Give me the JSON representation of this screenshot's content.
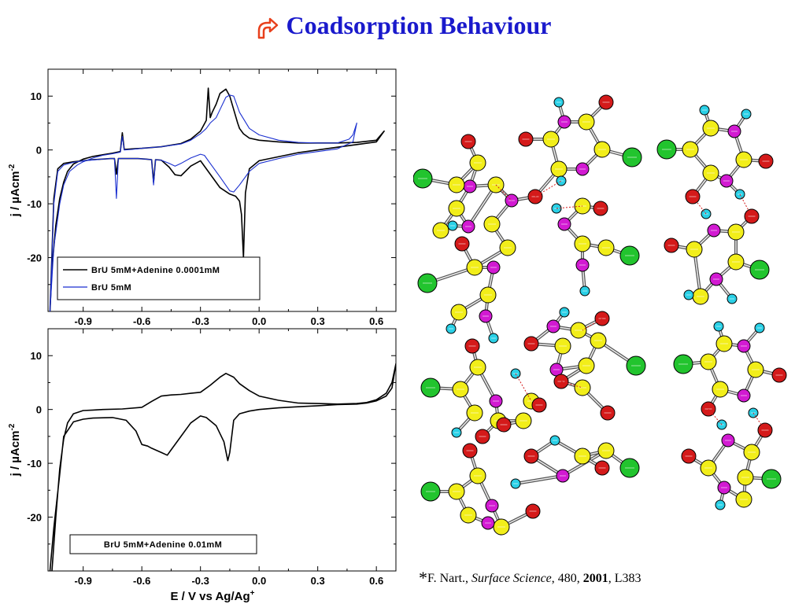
{
  "slide": {
    "title": "Coadsorption Behaviour",
    "title_color": "#1a1acc",
    "icon": "curved-arrow-icon",
    "icon_color": "#e8401c"
  },
  "citation": {
    "star": "*",
    "author": "F. Nart., ",
    "journal": "Surface Science",
    "volume": ", 480, ",
    "year": "2001",
    "pages": ", L383"
  },
  "chart_data": [
    {
      "type": "line",
      "xlim": [
        -1.08,
        0.7
      ],
      "ylim": [
        -30,
        15
      ],
      "xticks": [
        "-0.9",
        "-0.6",
        "-0.3",
        "0.0",
        "0.3",
        "0.6"
      ],
      "yticks": [
        "10",
        "0",
        "-10",
        "-20"
      ],
      "ylabel": "j / µAcm",
      "ylabel_sup": "-2",
      "legend_position": "bottom-left",
      "series": [
        {
          "name": "BrU 5mM+Adenine 0.0001mM",
          "color": "#000000",
          "x": [
            -1.07,
            -1.06,
            -1.04,
            -1.02,
            -1.0,
            -0.98,
            -0.95,
            -0.9,
            -0.85,
            -0.8,
            -0.75,
            -0.71,
            -0.7,
            -0.69,
            -0.65,
            -0.6,
            -0.5,
            -0.4,
            -0.35,
            -0.3,
            -0.27,
            -0.26,
            -0.25,
            -0.24,
            -0.22,
            -0.2,
            -0.17,
            -0.15,
            -0.13,
            -0.11,
            -0.1,
            -0.08,
            -0.05,
            0.0,
            0.1,
            0.2,
            0.3,
            0.4,
            0.5,
            0.6,
            0.64,
            0.6,
            0.4,
            0.2,
            0.0,
            -0.05,
            -0.07,
            -0.08,
            -0.09,
            -0.1,
            -0.12,
            -0.15,
            -0.2,
            -0.25,
            -0.3,
            -0.35,
            -0.4,
            -0.43,
            -0.46,
            -0.5,
            -0.53,
            -0.54,
            -0.55,
            -0.58,
            -0.62,
            -0.68,
            -0.72,
            -0.73,
            -0.74,
            -0.76,
            -0.8,
            -0.85,
            -0.9,
            -0.95,
            -1.0,
            -1.03,
            -1.05,
            -1.07
          ],
          "y": [
            -30,
            -22,
            -14,
            -9,
            -6,
            -4,
            -2.6,
            -1.7,
            -1.2,
            -0.9,
            -0.6,
            -0.3,
            3.2,
            0.1,
            0.2,
            0.3,
            0.6,
            1.2,
            2.0,
            3.5,
            5.5,
            11.5,
            6.0,
            7.0,
            8.5,
            10.5,
            11.3,
            10.0,
            7.5,
            5.0,
            4.0,
            3.0,
            2.2,
            1.8,
            1.5,
            1.3,
            1.3,
            1.3,
            1.4,
            1.8,
            3.5,
            1.5,
            0.5,
            -0.5,
            -2.0,
            -3.5,
            -8.0,
            -20.0,
            -12.0,
            -9.5,
            -8.6,
            -8.2,
            -7.0,
            -4.5,
            -2.0,
            -3.0,
            -4.8,
            -4.6,
            -3.2,
            -1.9,
            -1.8,
            -6.0,
            -1.8,
            -1.7,
            -1.6,
            -1.6,
            -1.6,
            -4.5,
            -1.6,
            -1.6,
            -1.7,
            -1.8,
            -2.0,
            -2.2,
            -2.5,
            -3.5,
            -9.0,
            -30
          ]
        },
        {
          "name": "BrU 5mM",
          "color": "#1a2fd0",
          "x": [
            -1.07,
            -1.05,
            -1.02,
            -1.0,
            -0.97,
            -0.93,
            -0.9,
            -0.85,
            -0.8,
            -0.75,
            -0.71,
            -0.7,
            -0.69,
            -0.65,
            -0.6,
            -0.5,
            -0.4,
            -0.35,
            -0.3,
            -0.27,
            -0.25,
            -0.22,
            -0.2,
            -0.17,
            -0.15,
            -0.13,
            -0.1,
            -0.05,
            0.0,
            0.1,
            0.2,
            0.3,
            0.4,
            0.46,
            0.48,
            0.5,
            0.48,
            0.4,
            0.3,
            0.2,
            0.1,
            0.0,
            -0.05,
            -0.1,
            -0.13,
            -0.15,
            -0.2,
            -0.25,
            -0.28,
            -0.3,
            -0.35,
            -0.4,
            -0.43,
            -0.46,
            -0.5,
            -0.53,
            -0.54,
            -0.55,
            -0.58,
            -0.62,
            -0.68,
            -0.72,
            -0.73,
            -0.74,
            -0.76,
            -0.8,
            -0.9,
            -0.95,
            -1.0,
            -1.03,
            -1.05,
            -1.07
          ],
          "y": [
            -30,
            -18,
            -10,
            -6.5,
            -4,
            -2.8,
            -2.2,
            -1.5,
            -1.0,
            -0.7,
            -0.4,
            2.5,
            0.0,
            0.1,
            0.3,
            0.6,
            1.1,
            1.8,
            3.0,
            4.0,
            5.0,
            6.0,
            7.5,
            9.8,
            10.2,
            10.0,
            7.0,
            4.0,
            2.8,
            1.8,
            1.4,
            1.3,
            1.3,
            2.0,
            2.8,
            5.0,
            1.5,
            0.2,
            -0.3,
            -0.8,
            -1.6,
            -2.5,
            -4.0,
            -6.5,
            -7.8,
            -7.6,
            -5.0,
            -2.5,
            -1.0,
            -0.8,
            -1.5,
            -2.5,
            -3.0,
            -2.5,
            -1.9,
            -1.8,
            -6.5,
            -1.8,
            -1.7,
            -1.6,
            -1.6,
            -1.6,
            -9.0,
            -1.6,
            -1.6,
            -1.7,
            -2.0,
            -2.3,
            -2.8,
            -4.0,
            -10.0,
            -30
          ]
        }
      ]
    },
    {
      "type": "line",
      "xlim": [
        -1.08,
        0.7
      ],
      "ylim": [
        -30,
        15
      ],
      "xticks": [
        "-0.9",
        "-0.6",
        "-0.3",
        "0.0",
        "0.3",
        "0.6"
      ],
      "yticks": [
        "10",
        "0",
        "-10",
        "-20"
      ],
      "xlabel": "E / V  vs Ag/Ag",
      "xlabel_sup": "+",
      "ylabel": "j / µAcm",
      "ylabel_sup": "-2",
      "legend_position": "bottom-center",
      "legend_only_label": true,
      "series": [
        {
          "name": "BrU 5mM+Adenine 0.01mM",
          "color": "#000000",
          "x": [
            -1.06,
            -1.04,
            -1.02,
            -1.0,
            -0.98,
            -0.95,
            -0.9,
            -0.85,
            -0.8,
            -0.7,
            -0.6,
            -0.55,
            -0.5,
            -0.45,
            -0.4,
            -0.35,
            -0.3,
            -0.25,
            -0.2,
            -0.17,
            -0.13,
            -0.1,
            -0.05,
            0.0,
            0.1,
            0.2,
            0.3,
            0.4,
            0.5,
            0.55,
            0.6,
            0.65,
            0.68,
            0.7,
            0.68,
            0.65,
            0.6,
            0.55,
            0.5,
            0.4,
            0.3,
            0.2,
            0.1,
            0.0,
            -0.05,
            -0.1,
            -0.13,
            -0.15,
            -0.16,
            -0.18,
            -0.22,
            -0.27,
            -0.3,
            -0.35,
            -0.4,
            -0.45,
            -0.47,
            -0.5,
            -0.55,
            -0.57,
            -0.6,
            -0.63,
            -0.68,
            -0.75,
            -0.85,
            -0.9,
            -0.95,
            -1.0,
            -1.02,
            -1.05,
            -1.07
          ],
          "y": [
            -30,
            -20,
            -11,
            -5.5,
            -2.5,
            -0.8,
            -0.2,
            -0.1,
            0.0,
            0.1,
            0.4,
            1.5,
            2.5,
            2.7,
            2.8,
            3.0,
            3.2,
            4.5,
            6.0,
            6.7,
            6.0,
            4.8,
            3.5,
            2.5,
            1.7,
            1.2,
            1.1,
            1.0,
            1.1,
            1.3,
            1.8,
            3.0,
            5.0,
            8.5,
            4.0,
            2.5,
            1.6,
            1.2,
            1.0,
            0.9,
            0.7,
            0.5,
            0.3,
            0.0,
            -0.3,
            -0.8,
            -2.0,
            -8.0,
            -9.5,
            -6.0,
            -3.0,
            -1.5,
            -1.2,
            -2.5,
            -5.0,
            -7.5,
            -8.5,
            -8.0,
            -7.2,
            -6.8,
            -6.5,
            -4.0,
            -2.0,
            -1.5,
            -1.6,
            -1.8,
            -2.3,
            -5.0,
            -12.0,
            -22.0,
            -30
          ]
        }
      ]
    }
  ]
}
